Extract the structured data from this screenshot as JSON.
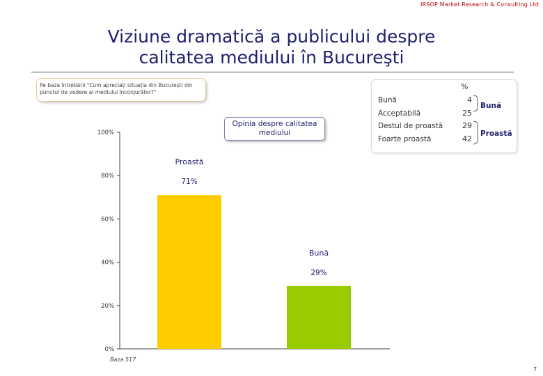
{
  "header": {
    "company": "IRSOP Market Research & Consulting Ltd",
    "title_line1": "Viziune dramatică a publicului despre",
    "title_line2": "calitatea mediului în Bucureşti"
  },
  "question": "Pe baza întrebării \"Cum apreciaţi situaţia din Bucureşti din punctul de vedere al mediului înconjurător?\"",
  "callout": {
    "line1": "Opinia despre calitatea",
    "line2": "mediului"
  },
  "legend_table": {
    "unit": "%",
    "rows": [
      {
        "label": "Bună",
        "value": "4"
      },
      {
        "label": "Acceptabilă",
        "value": "25"
      },
      {
        "label": "Destul de proastă",
        "value": "29"
      },
      {
        "label": "Foarte proastă",
        "value": "42"
      }
    ],
    "group_good": "Bună",
    "group_bad": "Proastă"
  },
  "footer": {
    "base": "Baza 517",
    "page": "7"
  },
  "chart_data": {
    "type": "bar",
    "categories": [
      "Proastă",
      "Bună"
    ],
    "values": [
      71,
      29
    ],
    "value_labels": [
      "71%",
      "29%"
    ],
    "colors": [
      "#ffcc00",
      "#99cc00"
    ],
    "yticks": [
      "0%",
      "20%",
      "40%",
      "60%",
      "80%",
      "100%"
    ],
    "ylim": [
      0,
      100
    ],
    "grid": false
  }
}
